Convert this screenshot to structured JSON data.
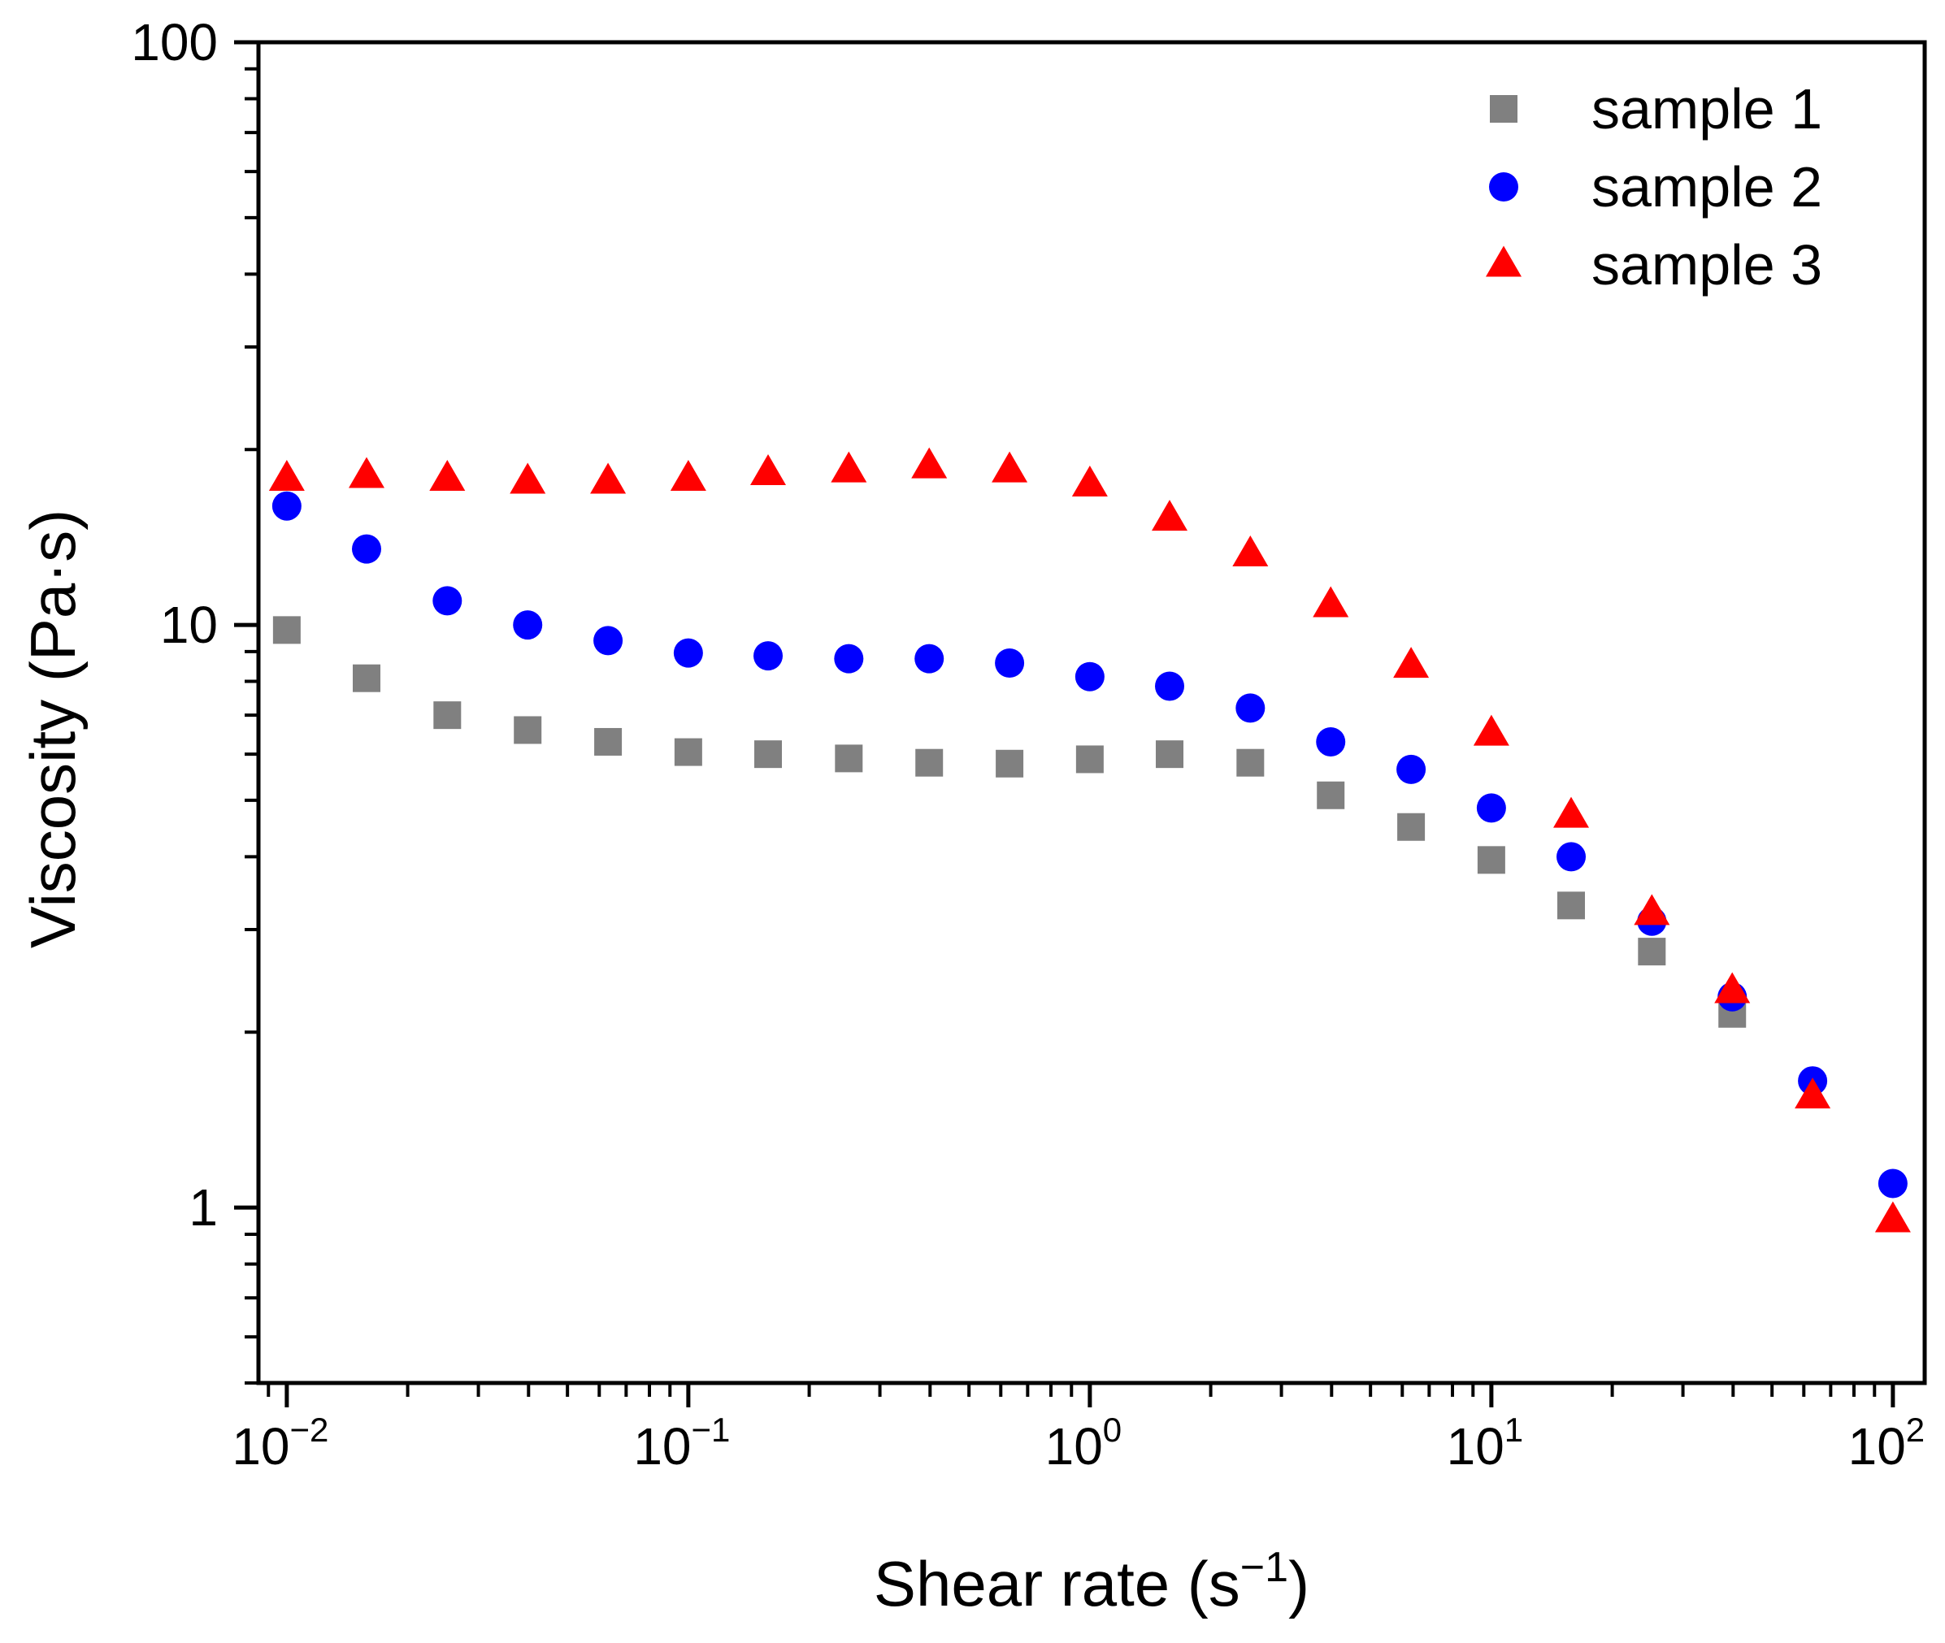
{
  "chart_data": {
    "type": "scatter",
    "title": "",
    "xlabel": "Shear rate (s",
    "xlabel_sup": "−1",
    "xlabel_end": ")",
    "ylabel": "Viscosity (Pa·s)",
    "xscale": "log",
    "yscale": "log",
    "xlim": [
      0.0085,
      120
    ],
    "ylim": [
      0.5,
      100
    ],
    "x_ticks": [
      {
        "value": 0.01,
        "base": "10",
        "exp": "-2"
      },
      {
        "value": 0.1,
        "base": "10",
        "exp": "-1"
      },
      {
        "value": 1,
        "base": "10",
        "exp": "0"
      },
      {
        "value": 10,
        "base": "10",
        "exp": "1"
      },
      {
        "value": 100,
        "base": "10",
        "exp": "2"
      }
    ],
    "y_ticks": [
      {
        "value": 1,
        "label": "1"
      },
      {
        "value": 10,
        "label": "10"
      },
      {
        "value": 100,
        "label": "100"
      }
    ],
    "legend_position": "top-right",
    "x": [
      0.01,
      0.0158,
      0.0251,
      0.0398,
      0.0631,
      0.1,
      0.158,
      0.251,
      0.398,
      0.631,
      1,
      1.58,
      2.51,
      3.98,
      6.31,
      10,
      15.8,
      25.1,
      39.8,
      63.1,
      100
    ],
    "series": [
      {
        "name": "sample 1",
        "marker": "square",
        "color": "#808080",
        "values": [
          9.8,
          8.1,
          7.0,
          6.6,
          6.3,
          6.05,
          6.0,
          5.9,
          5.8,
          5.78,
          5.88,
          6.0,
          5.8,
          5.1,
          4.5,
          3.95,
          3.3,
          2.75,
          2.15,
          null,
          null
        ]
      },
      {
        "name": "sample 2",
        "marker": "circle",
        "color": "#0000ff",
        "values": [
          16.0,
          13.5,
          11.0,
          10.0,
          9.4,
          8.95,
          8.85,
          8.75,
          8.75,
          8.6,
          8.15,
          7.85,
          7.2,
          6.3,
          5.65,
          4.85,
          4.0,
          3.1,
          2.3,
          1.65,
          1.1
        ]
      },
      {
        "name": "sample 3",
        "marker": "triangle",
        "color": "#ff0000",
        "values": [
          17.8,
          18.0,
          17.8,
          17.6,
          17.6,
          17.8,
          18.2,
          18.4,
          18.7,
          18.4,
          17.4,
          15.2,
          13.2,
          10.8,
          8.5,
          6.5,
          4.7,
          3.2,
          2.35,
          1.55,
          0.95
        ]
      }
    ]
  }
}
